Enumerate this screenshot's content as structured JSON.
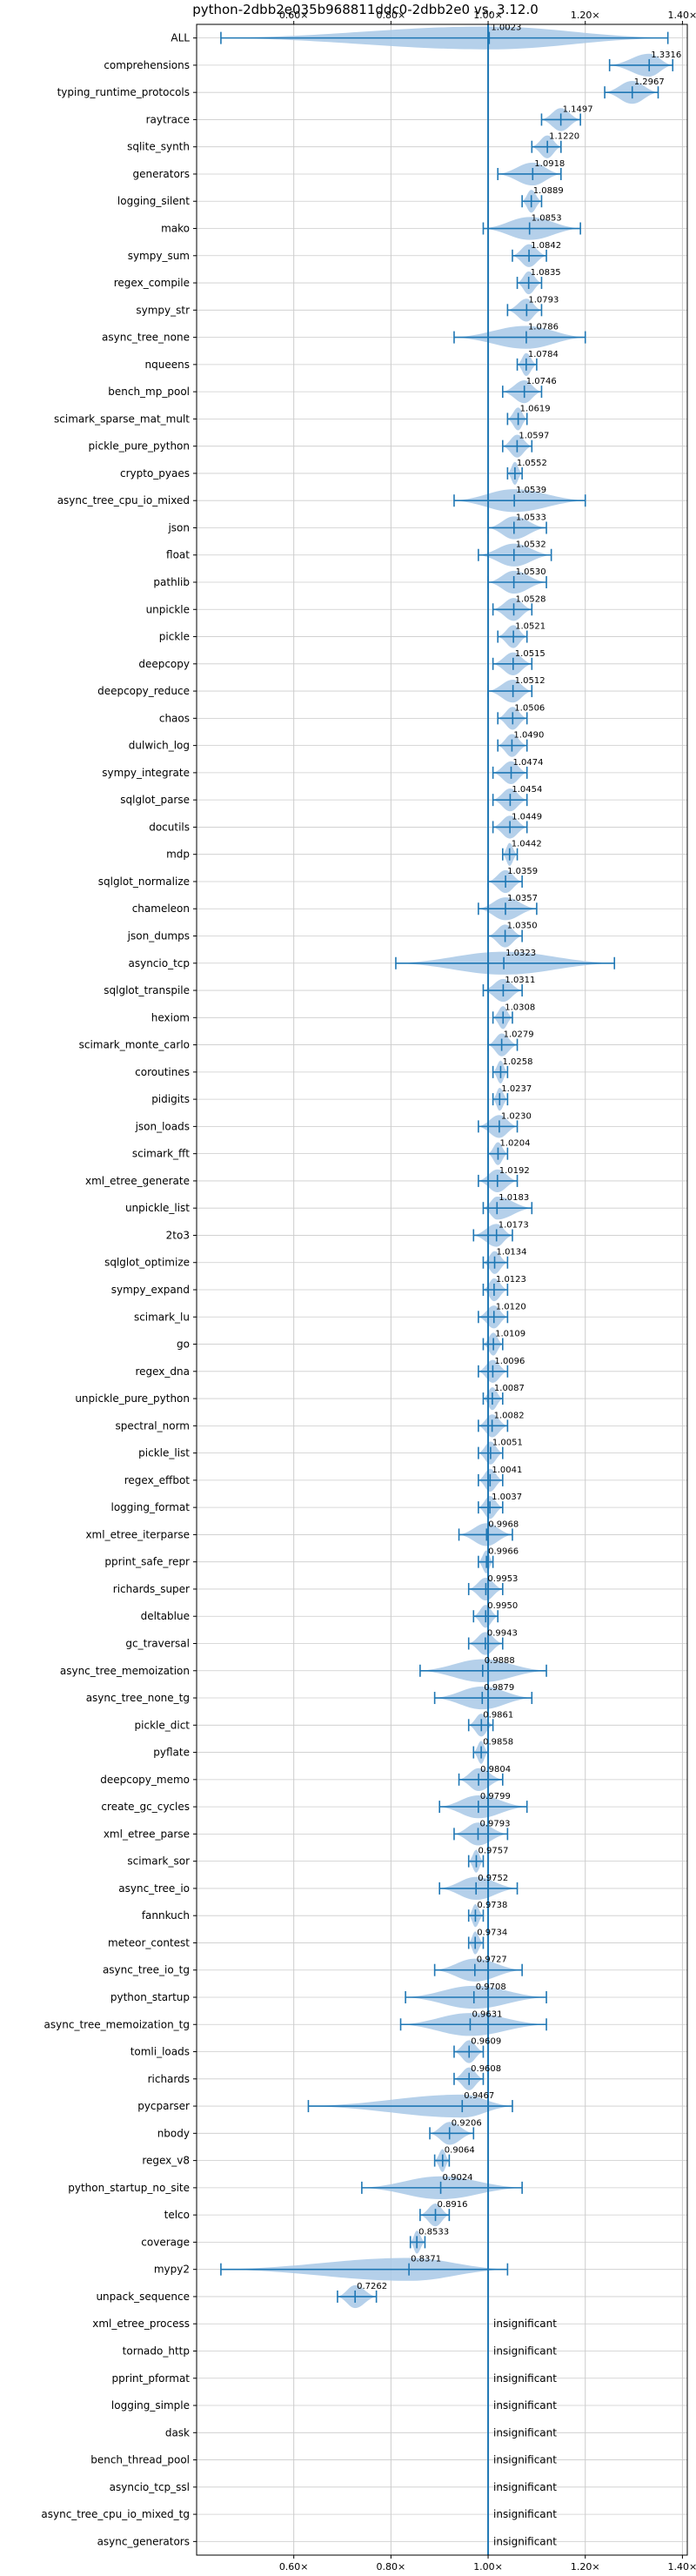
{
  "chart_data": {
    "type": "violin",
    "title": "python-2dbb2e035b968811ddc0-2dbb2e0 vs. 3.12.0",
    "xticks": [
      {
        "value": 0.6,
        "label": "0.60×"
      },
      {
        "value": 0.8,
        "label": "0.80×"
      },
      {
        "value": 1.0,
        "label": "1.00×"
      },
      {
        "value": 1.2,
        "label": "1.20×"
      },
      {
        "value": 1.4,
        "label": "1.40×"
      }
    ],
    "xlim": [
      0.4,
      1.41
    ],
    "reference_x": 1.0,
    "grid": true,
    "colors": {
      "violin": "#a8c8e6",
      "errorbar": "#1f77b4",
      "grid": "#cccccc"
    },
    "insignificant_label": "insignificant",
    "benchmarks": [
      {
        "name": "ALL",
        "label": "1.0023",
        "mean": 1.0023,
        "min": 0.45,
        "max": 1.37
      },
      {
        "name": "comprehensions",
        "label": "1.3316",
        "mean": 1.3316,
        "min": 1.25,
        "max": 1.38
      },
      {
        "name": "typing_runtime_protocols",
        "label": "1.2967",
        "mean": 1.2967,
        "min": 1.24,
        "max": 1.35
      },
      {
        "name": "raytrace",
        "label": "1.1497",
        "mean": 1.1497,
        "min": 1.11,
        "max": 1.19
      },
      {
        "name": "sqlite_synth",
        "label": "1.1220",
        "mean": 1.122,
        "min": 1.09,
        "max": 1.15
      },
      {
        "name": "generators",
        "label": "1.0918",
        "mean": 1.0918,
        "min": 1.02,
        "max": 1.15
      },
      {
        "name": "logging_silent",
        "label": "1.0889",
        "mean": 1.0889,
        "min": 1.07,
        "max": 1.11
      },
      {
        "name": "mako",
        "label": "1.0853",
        "mean": 1.0853,
        "min": 0.99,
        "max": 1.19
      },
      {
        "name": "sympy_sum",
        "label": "1.0842",
        "mean": 1.0842,
        "min": 1.05,
        "max": 1.12
      },
      {
        "name": "regex_compile",
        "label": "1.0835",
        "mean": 1.0835,
        "min": 1.06,
        "max": 1.11
      },
      {
        "name": "sympy_str",
        "label": "1.0793",
        "mean": 1.0793,
        "min": 1.04,
        "max": 1.11
      },
      {
        "name": "async_tree_none",
        "label": "1.0786",
        "mean": 1.0786,
        "min": 0.93,
        "max": 1.2
      },
      {
        "name": "nqueens",
        "label": "1.0784",
        "mean": 1.0784,
        "min": 1.06,
        "max": 1.1
      },
      {
        "name": "bench_mp_pool",
        "label": "1.0746",
        "mean": 1.0746,
        "min": 1.03,
        "max": 1.11
      },
      {
        "name": "scimark_sparse_mat_mult",
        "label": "1.0619",
        "mean": 1.0619,
        "min": 1.04,
        "max": 1.08
      },
      {
        "name": "pickle_pure_python",
        "label": "1.0597",
        "mean": 1.0597,
        "min": 1.03,
        "max": 1.09
      },
      {
        "name": "crypto_pyaes",
        "label": "1.0552",
        "mean": 1.0552,
        "min": 1.04,
        "max": 1.07
      },
      {
        "name": "async_tree_cpu_io_mixed",
        "label": "1.0539",
        "mean": 1.0539,
        "min": 0.93,
        "max": 1.2
      },
      {
        "name": "json",
        "label": "1.0533",
        "mean": 1.0533,
        "min": 1.0,
        "max": 1.12
      },
      {
        "name": "float",
        "label": "1.0532",
        "mean": 1.0532,
        "min": 0.98,
        "max": 1.13
      },
      {
        "name": "pathlib",
        "label": "1.0530",
        "mean": 1.053,
        "min": 1.0,
        "max": 1.12
      },
      {
        "name": "unpickle",
        "label": "1.0528",
        "mean": 1.0528,
        "min": 1.01,
        "max": 1.09
      },
      {
        "name": "pickle",
        "label": "1.0521",
        "mean": 1.0521,
        "min": 1.02,
        "max": 1.08
      },
      {
        "name": "deepcopy",
        "label": "1.0515",
        "mean": 1.0515,
        "min": 1.01,
        "max": 1.09
      },
      {
        "name": "deepcopy_reduce",
        "label": "1.0512",
        "mean": 1.0512,
        "min": 1.0,
        "max": 1.09
      },
      {
        "name": "chaos",
        "label": "1.0506",
        "mean": 1.0506,
        "min": 1.02,
        "max": 1.08
      },
      {
        "name": "dulwich_log",
        "label": "1.0490",
        "mean": 1.049,
        "min": 1.02,
        "max": 1.08
      },
      {
        "name": "sympy_integrate",
        "label": "1.0474",
        "mean": 1.0474,
        "min": 1.01,
        "max": 1.08
      },
      {
        "name": "sqlglot_parse",
        "label": "1.0454",
        "mean": 1.0454,
        "min": 1.01,
        "max": 1.08
      },
      {
        "name": "docutils",
        "label": "1.0449",
        "mean": 1.0449,
        "min": 1.01,
        "max": 1.08
      },
      {
        "name": "mdp",
        "label": "1.0442",
        "mean": 1.0442,
        "min": 1.03,
        "max": 1.06
      },
      {
        "name": "sqlglot_normalize",
        "label": "1.0359",
        "mean": 1.0359,
        "min": 1.0,
        "max": 1.07
      },
      {
        "name": "chameleon",
        "label": "1.0357",
        "mean": 1.0357,
        "min": 0.98,
        "max": 1.1
      },
      {
        "name": "json_dumps",
        "label": "1.0350",
        "mean": 1.035,
        "min": 1.0,
        "max": 1.07
      },
      {
        "name": "asyncio_tcp",
        "label": "1.0323",
        "mean": 1.0323,
        "min": 0.81,
        "max": 1.26
      },
      {
        "name": "sqlglot_transpile",
        "label": "1.0311",
        "mean": 1.0311,
        "min": 0.99,
        "max": 1.07
      },
      {
        "name": "hexiom",
        "label": "1.0308",
        "mean": 1.0308,
        "min": 1.01,
        "max": 1.05
      },
      {
        "name": "scimark_monte_carlo",
        "label": "1.0279",
        "mean": 1.0279,
        "min": 1.0,
        "max": 1.06
      },
      {
        "name": "coroutines",
        "label": "1.0258",
        "mean": 1.0258,
        "min": 1.01,
        "max": 1.04
      },
      {
        "name": "pidigits",
        "label": "1.0237",
        "mean": 1.0237,
        "min": 1.01,
        "max": 1.04
      },
      {
        "name": "json_loads",
        "label": "1.0230",
        "mean": 1.023,
        "min": 0.98,
        "max": 1.06
      },
      {
        "name": "scimark_fft",
        "label": "1.0204",
        "mean": 1.0204,
        "min": 1.0,
        "max": 1.04
      },
      {
        "name": "xml_etree_generate",
        "label": "1.0192",
        "mean": 1.0192,
        "min": 0.98,
        "max": 1.06
      },
      {
        "name": "unpickle_list",
        "label": "1.0183",
        "mean": 1.0183,
        "min": 0.99,
        "max": 1.09
      },
      {
        "name": "2to3",
        "label": "1.0173",
        "mean": 1.0173,
        "min": 0.97,
        "max": 1.05
      },
      {
        "name": "sqlglot_optimize",
        "label": "1.0134",
        "mean": 1.0134,
        "min": 0.99,
        "max": 1.04
      },
      {
        "name": "sympy_expand",
        "label": "1.0123",
        "mean": 1.0123,
        "min": 0.99,
        "max": 1.04
      },
      {
        "name": "scimark_lu",
        "label": "1.0120",
        "mean": 1.012,
        "min": 0.98,
        "max": 1.04
      },
      {
        "name": "go",
        "label": "1.0109",
        "mean": 1.0109,
        "min": 0.99,
        "max": 1.03
      },
      {
        "name": "regex_dna",
        "label": "1.0096",
        "mean": 1.0096,
        "min": 0.98,
        "max": 1.04
      },
      {
        "name": "unpickle_pure_python",
        "label": "1.0087",
        "mean": 1.0087,
        "min": 0.99,
        "max": 1.03
      },
      {
        "name": "spectral_norm",
        "label": "1.0082",
        "mean": 1.0082,
        "min": 0.98,
        "max": 1.04
      },
      {
        "name": "pickle_list",
        "label": "1.0051",
        "mean": 1.0051,
        "min": 0.98,
        "max": 1.03
      },
      {
        "name": "regex_effbot",
        "label": "1.0041",
        "mean": 1.0041,
        "min": 0.98,
        "max": 1.03
      },
      {
        "name": "logging_format",
        "label": "1.0037",
        "mean": 1.0037,
        "min": 0.98,
        "max": 1.03
      },
      {
        "name": "xml_etree_iterparse",
        "label": "0.9968",
        "mean": 0.9968,
        "min": 0.94,
        "max": 1.05
      },
      {
        "name": "pprint_safe_repr",
        "label": "0.9966",
        "mean": 0.9966,
        "min": 0.98,
        "max": 1.01
      },
      {
        "name": "richards_super",
        "label": "0.9953",
        "mean": 0.9953,
        "min": 0.96,
        "max": 1.03
      },
      {
        "name": "deltablue",
        "label": "0.9950",
        "mean": 0.995,
        "min": 0.97,
        "max": 1.02
      },
      {
        "name": "gc_traversal",
        "label": "0.9943",
        "mean": 0.9943,
        "min": 0.96,
        "max": 1.03
      },
      {
        "name": "async_tree_memoization",
        "label": "0.9888",
        "mean": 0.9888,
        "min": 0.86,
        "max": 1.12
      },
      {
        "name": "async_tree_none_tg",
        "label": "0.9879",
        "mean": 0.9879,
        "min": 0.89,
        "max": 1.09
      },
      {
        "name": "pickle_dict",
        "label": "0.9861",
        "mean": 0.9861,
        "min": 0.96,
        "max": 1.01
      },
      {
        "name": "pyflate",
        "label": "0.9858",
        "mean": 0.9858,
        "min": 0.97,
        "max": 1.0
      },
      {
        "name": "deepcopy_memo",
        "label": "0.9804",
        "mean": 0.9804,
        "min": 0.94,
        "max": 1.03
      },
      {
        "name": "create_gc_cycles",
        "label": "0.9799",
        "mean": 0.9799,
        "min": 0.9,
        "max": 1.08
      },
      {
        "name": "xml_etree_parse",
        "label": "0.9793",
        "mean": 0.9793,
        "min": 0.93,
        "max": 1.04
      },
      {
        "name": "scimark_sor",
        "label": "0.9757",
        "mean": 0.9757,
        "min": 0.96,
        "max": 0.99
      },
      {
        "name": "async_tree_io",
        "label": "0.9752",
        "mean": 0.9752,
        "min": 0.9,
        "max": 1.06
      },
      {
        "name": "fannkuch",
        "label": "0.9738",
        "mean": 0.9738,
        "min": 0.96,
        "max": 0.99
      },
      {
        "name": "meteor_contest",
        "label": "0.9734",
        "mean": 0.9734,
        "min": 0.96,
        "max": 0.99
      },
      {
        "name": "async_tree_io_tg",
        "label": "0.9727",
        "mean": 0.9727,
        "min": 0.89,
        "max": 1.07
      },
      {
        "name": "python_startup",
        "label": "0.9708",
        "mean": 0.9708,
        "min": 0.83,
        "max": 1.12
      },
      {
        "name": "async_tree_memoization_tg",
        "label": "0.9631",
        "mean": 0.9631,
        "min": 0.82,
        "max": 1.12
      },
      {
        "name": "tomli_loads",
        "label": "0.9609",
        "mean": 0.9609,
        "min": 0.93,
        "max": 0.99
      },
      {
        "name": "richards",
        "label": "0.9608",
        "mean": 0.9608,
        "min": 0.93,
        "max": 0.99
      },
      {
        "name": "pycparser",
        "label": "0.9467",
        "mean": 0.9467,
        "min": 0.63,
        "max": 1.05
      },
      {
        "name": "nbody",
        "label": "0.9206",
        "mean": 0.9206,
        "min": 0.88,
        "max": 0.97
      },
      {
        "name": "regex_v8",
        "label": "0.9064",
        "mean": 0.9064,
        "min": 0.89,
        "max": 0.92
      },
      {
        "name": "python_startup_no_site",
        "label": "0.9024",
        "mean": 0.9024,
        "min": 0.74,
        "max": 1.07
      },
      {
        "name": "telco",
        "label": "0.8916",
        "mean": 0.8916,
        "min": 0.86,
        "max": 0.92
      },
      {
        "name": "coverage",
        "label": "0.8533",
        "mean": 0.8533,
        "min": 0.84,
        "max": 0.87
      },
      {
        "name": "mypy2",
        "label": "0.8371",
        "mean": 0.8371,
        "min": 0.45,
        "max": 1.04
      },
      {
        "name": "unpack_sequence",
        "label": "0.7262",
        "mean": 0.7262,
        "min": 0.69,
        "max": 0.77
      },
      {
        "name": "xml_etree_process",
        "insignificant": true
      },
      {
        "name": "tornado_http",
        "insignificant": true
      },
      {
        "name": "pprint_pformat",
        "insignificant": true
      },
      {
        "name": "logging_simple",
        "insignificant": true
      },
      {
        "name": "dask",
        "insignificant": true
      },
      {
        "name": "bench_thread_pool",
        "insignificant": true
      },
      {
        "name": "asyncio_tcp_ssl",
        "insignificant": true
      },
      {
        "name": "async_tree_cpu_io_mixed_tg",
        "insignificant": true
      },
      {
        "name": "async_generators",
        "insignificant": true
      }
    ]
  }
}
